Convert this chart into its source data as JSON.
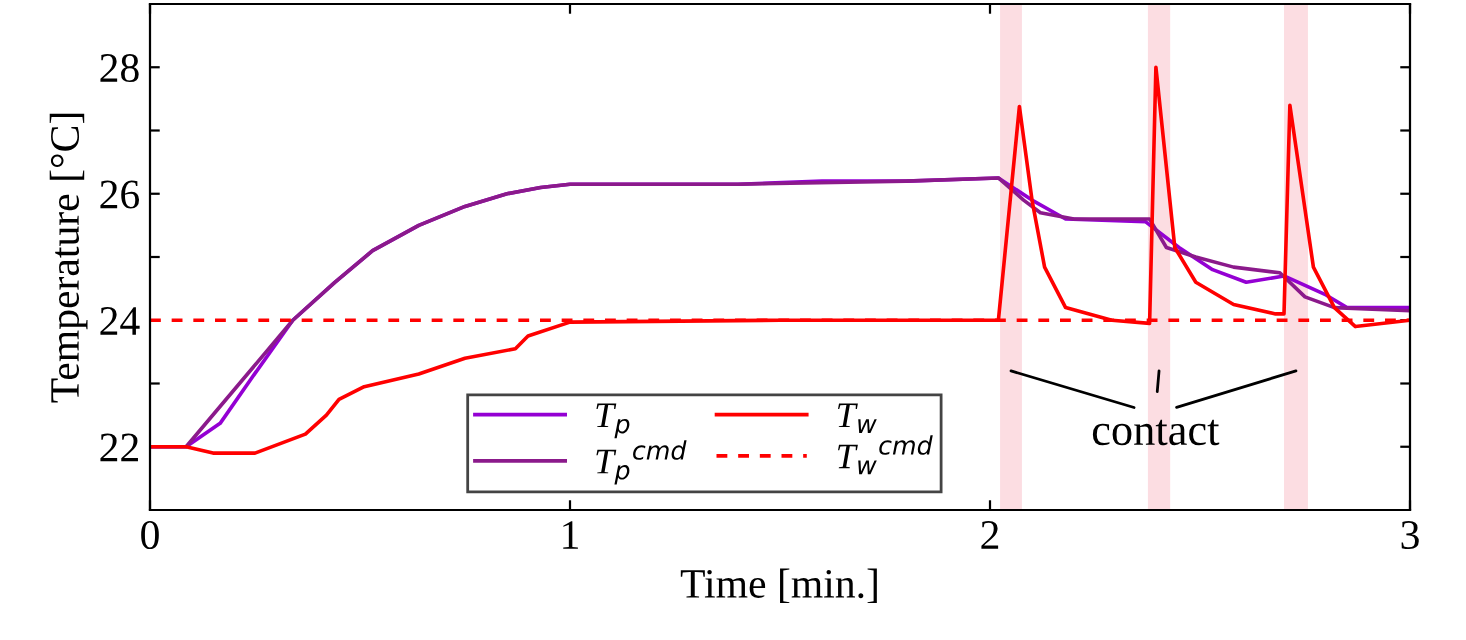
{
  "chart_data": {
    "type": "line",
    "xlabel": "Time [min.]",
    "ylabel": "Temperature [°C]",
    "xlim": [
      0,
      3
    ],
    "ylim": [
      21,
      29
    ],
    "xticks": [
      0,
      1,
      2,
      3
    ],
    "yticks": [
      22,
      {
        "value": 23,
        "label": null
      },
      24,
      {
        "value": 25,
        "label": null
      },
      26,
      {
        "value": 27,
        "label": null
      },
      28
    ],
    "grid": false,
    "legend": "bottom",
    "line_style": "solid",
    "marker": "none",
    "series": [
      {
        "name": "T$_{p}$",
        "color": "#9400d3",
        "x": [
          0,
          0.086,
          0.167,
          0.25,
          0.34,
          0.44,
          0.53,
          0.64,
          0.75,
          0.85,
          0.93,
          1.0,
          1.2,
          1.4,
          1.6,
          1.8,
          2.02,
          2.1,
          2.18,
          2.37,
          2.45,
          2.53,
          2.61,
          2.7,
          2.8,
          2.85,
          3.0
        ],
        "values": [
          22,
          22,
          22.37,
          23.16,
          24.0,
          24.6,
          25.1,
          25.5,
          25.8,
          26.0,
          26.1,
          26.15,
          26.15,
          26.15,
          26.2,
          26.2,
          26.25,
          25.9,
          25.6,
          25.56,
          25.15,
          24.8,
          24.6,
          24.7,
          24.4,
          24.2,
          24.2
        ]
      },
      {
        "name": "T$_{p}$$^{cmd}$",
        "color": "#8b1a8b",
        "x": [
          0,
          0.086,
          0.34,
          0.44,
          0.53,
          0.64,
          0.75,
          0.85,
          0.93,
          1.0,
          1.4,
          1.8,
          2.02,
          2.08,
          2.12,
          2.2,
          2.38,
          2.42,
          2.49,
          2.58,
          2.69,
          2.75,
          2.82,
          3.0
        ],
        "values": [
          22,
          22,
          24.0,
          24.6,
          25.1,
          25.5,
          25.8,
          26.0,
          26.1,
          26.15,
          26.15,
          26.2,
          26.25,
          25.9,
          25.7,
          25.6,
          25.6,
          25.15,
          25.0,
          24.84,
          24.75,
          24.37,
          24.2,
          24.15
        ]
      },
      {
        "name": "T$_{w}$",
        "color": "#ff0000",
        "x": [
          0,
          0.086,
          0.15,
          0.25,
          0.37,
          0.42,
          0.45,
          0.51,
          0.64,
          0.75,
          0.87,
          0.9,
          1.0,
          1.5,
          2.02,
          2.07,
          2.1,
          2.13,
          2.18,
          2.29,
          2.38,
          2.395,
          2.44,
          2.49,
          2.58,
          2.68,
          2.7,
          2.714,
          2.77,
          2.82,
          2.87,
          3.0
        ],
        "values": [
          22,
          22,
          21.9,
          21.9,
          22.2,
          22.5,
          22.75,
          22.95,
          23.15,
          23.4,
          23.55,
          23.75,
          23.97,
          24.0,
          24.0,
          27.38,
          25.9,
          24.84,
          24.2,
          24.0,
          23.95,
          28.0,
          25.15,
          24.6,
          24.25,
          24.1,
          24.1,
          27.4,
          24.84,
          24.2,
          23.9,
          24.0
        ]
      },
      {
        "name": "T$_{w}$$^{cmd}$",
        "color": "#ff0000",
        "line_style": "dashed",
        "x": [
          0,
          3
        ],
        "values": [
          24,
          24
        ]
      }
    ],
    "bands": [
      {
        "axis": "x",
        "from": 2.024,
        "to": 2.076,
        "color": "#fcdde2"
      },
      {
        "axis": "x",
        "from": 2.376,
        "to": 2.429,
        "color": "#fcdde2"
      },
      {
        "axis": "x",
        "from": 2.7,
        "to": 2.757,
        "color": "#fcdde2"
      }
    ],
    "annotations": [
      "contact"
    ]
  }
}
